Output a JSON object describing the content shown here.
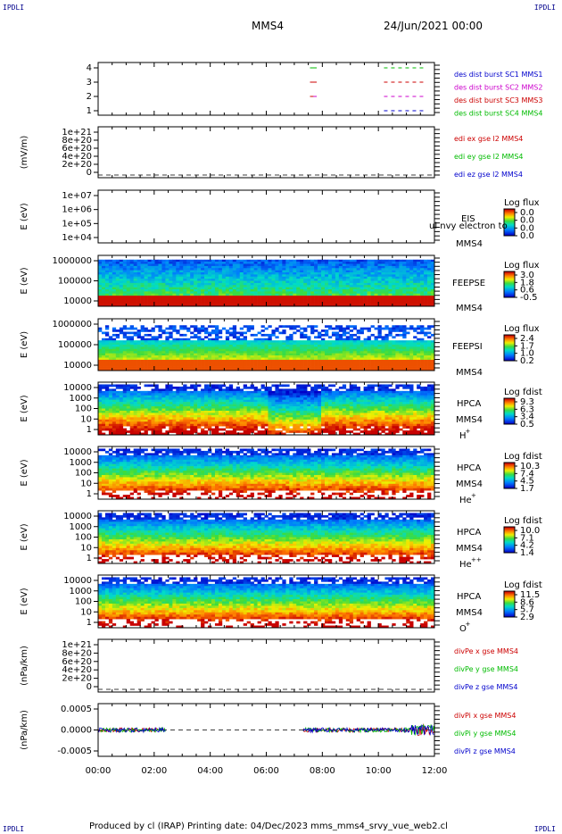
{
  "corners": {
    "tl": "IPDLI",
    "tr": "IPDLI",
    "bl": "IPDLI",
    "br": "IPDLI"
  },
  "header": {
    "spacecraft": "MMS4",
    "date": "24/Jun/2021 00:00"
  },
  "footer": {
    "text": "Produced by cl (IRAP)    Printing date: 04/Dec/2023    mms_mms4_srvy_vue_web2.cl"
  },
  "chart_data": [
    {
      "type": "line",
      "name": "burst-availability",
      "yticks": [
        "4",
        "3",
        "2",
        "1"
      ],
      "legend": [
        {
          "text": "des dist burst SC1 MMS1",
          "color": "#0000cc"
        },
        {
          "text": "des dist burst SC2 MMS2",
          "color": "#cc00cc"
        },
        {
          "text": "des dist burst SC3 MMS3",
          "color": "#cc0000"
        },
        {
          "text": "des dist burst SC4 MMS4",
          "color": "#00bb00"
        }
      ]
    },
    {
      "type": "line",
      "name": "edi-e-field",
      "ylabel": "(mV/m)",
      "yticks": [
        "1e+21",
        "8e+20",
        "6e+20",
        "4e+20",
        "2e+20",
        "0"
      ],
      "legend": [
        {
          "text": "edi ex gse l2 MMS4",
          "color": "#cc0000"
        },
        {
          "text": "edi ey gse l2 MMS4",
          "color": "#00bb00"
        },
        {
          "text": "edi ez gse l2 MMS4",
          "color": "#0000cc"
        }
      ]
    },
    {
      "type": "heatmap",
      "name": "eis",
      "ylabel": "E (eV)",
      "yticks": [
        "1e+07",
        "1e+06",
        "1e+05",
        "1e+04"
      ],
      "label1": "EIS",
      "label2": "MMS4",
      "overlay": "ul nvy electron to",
      "cbar_title": "Log flux",
      "cbar_ticks": [
        "0.0",
        "0.0",
        "0.0",
        "0.0"
      ]
    },
    {
      "type": "heatmap",
      "name": "feeps-electron",
      "ylabel": "E (eV)",
      "yticks": [
        "1000000",
        "100000",
        "10000"
      ],
      "label1": "FEEPSE",
      "label2": "MMS4",
      "cbar_title": "Log flux",
      "cbar_ticks": [
        "3.0",
        "1.8",
        "0.6",
        "-0.5"
      ]
    },
    {
      "type": "heatmap",
      "name": "feeps-ion",
      "ylabel": "E (eV)",
      "yticks": [
        "1000000",
        "100000",
        "10000"
      ],
      "label1": "FEEPSI",
      "label2": "MMS4",
      "cbar_title": "Log flux",
      "cbar_ticks": [
        "2.4",
        "1.7",
        "1.0",
        "0.2"
      ]
    },
    {
      "type": "heatmap",
      "name": "hpca-h",
      "ylabel": "E (eV)",
      "yticks": [
        "10000",
        "1000",
        "100",
        "10",
        "1"
      ],
      "label1": "HPCA",
      "label2": "MMS4",
      "species": "H",
      "charge": "+",
      "cbar_title": "Log fdist",
      "cbar_ticks": [
        "9.3",
        "6.3",
        "3.4",
        "0.5"
      ]
    },
    {
      "type": "heatmap",
      "name": "hpca-he",
      "ylabel": "E (eV)",
      "yticks": [
        "10000",
        "1000",
        "100",
        "10",
        "1"
      ],
      "label1": "HPCA",
      "label2": "MMS4",
      "species": "He",
      "charge": "+",
      "cbar_title": "Log fdist",
      "cbar_ticks": [
        "10.3",
        "7.4",
        "4.5",
        "1.7"
      ]
    },
    {
      "type": "heatmap",
      "name": "hpca-hepp",
      "ylabel": "E (eV)",
      "yticks": [
        "10000",
        "1000",
        "100",
        "10",
        "1"
      ],
      "label1": "HPCA",
      "label2": "MMS4",
      "species": "He",
      "charge": "++",
      "cbar_title": "Log fdist",
      "cbar_ticks": [
        "10.0",
        "7.1",
        "4.2",
        "1.4"
      ]
    },
    {
      "type": "heatmap",
      "name": "hpca-o",
      "ylabel": "E (eV)",
      "yticks": [
        "10000",
        "1000",
        "100",
        "10",
        "1"
      ],
      "label1": "HPCA",
      "label2": "MMS4",
      "species": "O",
      "charge": "+",
      "cbar_title": "Log fdist",
      "cbar_ticks": [
        "11.5",
        "8.6",
        "5.7",
        "2.9"
      ]
    },
    {
      "type": "line",
      "name": "div-pe",
      "ylabel": "(nPa/km)",
      "yticks": [
        "1e+21",
        "8e+20",
        "6e+20",
        "4e+20",
        "2e+20",
        "0"
      ],
      "legend": [
        {
          "text": "divPe x gse MMS4",
          "color": "#cc0000"
        },
        {
          "text": "divPe y gse MMS4",
          "color": "#00bb00"
        },
        {
          "text": "divPe z gse MMS4",
          "color": "#0000cc"
        }
      ]
    },
    {
      "type": "line",
      "name": "div-pi",
      "ylabel": "(nPa/km)",
      "yticks": [
        "0.0005",
        "0.0000",
        "-0.0005"
      ],
      "legend": [
        {
          "text": "divPi x gse MMS4",
          "color": "#cc0000"
        },
        {
          "text": "divPi y gse MMS4",
          "color": "#00bb00"
        },
        {
          "text": "divPi z gse MMS4",
          "color": "#0000cc"
        }
      ]
    }
  ],
  "xaxis": {
    "ticks": [
      "00:00",
      "02:00",
      "04:00",
      "06:00",
      "08:00",
      "10:00",
      "12:00"
    ]
  }
}
